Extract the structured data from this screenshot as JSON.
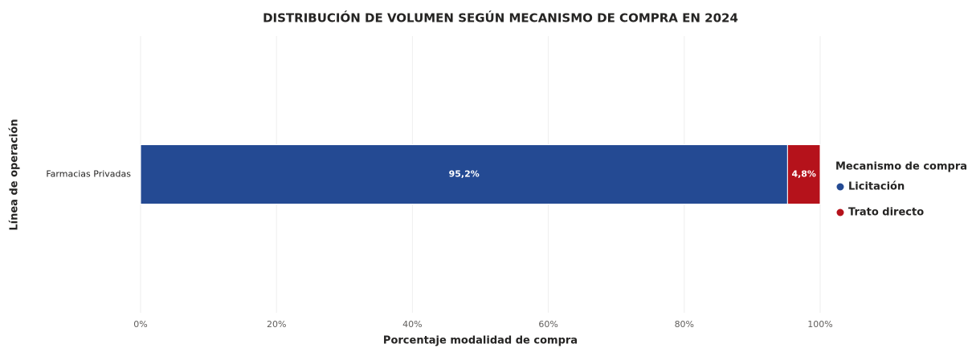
{
  "chart_data": {
    "type": "bar",
    "orientation": "horizontal",
    "stacked": true,
    "title": "DISTRIBUCIÓN DE VOLUMEN SEGÚN MECANISMO DE COMPRA EN 2024",
    "x_label": "Porcentaje modalidad de compra",
    "y_label": "Línea de operación",
    "categories": [
      "Farmacias Privadas"
    ],
    "series": [
      {
        "name": "Licitación",
        "color": "#244a93",
        "values": [
          95.2
        ],
        "value_labels": [
          "95,2%"
        ]
      },
      {
        "name": "Trato directo",
        "color": "#b5121b",
        "values": [
          4.8
        ],
        "value_labels": [
          "4,8%"
        ]
      }
    ],
    "xlim": [
      0,
      100
    ],
    "xticks": [
      {
        "value": 0,
        "label": "0%"
      },
      {
        "value": 20,
        "label": "20%"
      },
      {
        "value": 40,
        "label": "40%"
      },
      {
        "value": 60,
        "label": "60%"
      },
      {
        "value": 80,
        "label": "80%"
      },
      {
        "value": 100,
        "label": "100%"
      }
    ],
    "grid": true,
    "legend": {
      "title": "Mecanismo de compra",
      "position": "right"
    }
  }
}
